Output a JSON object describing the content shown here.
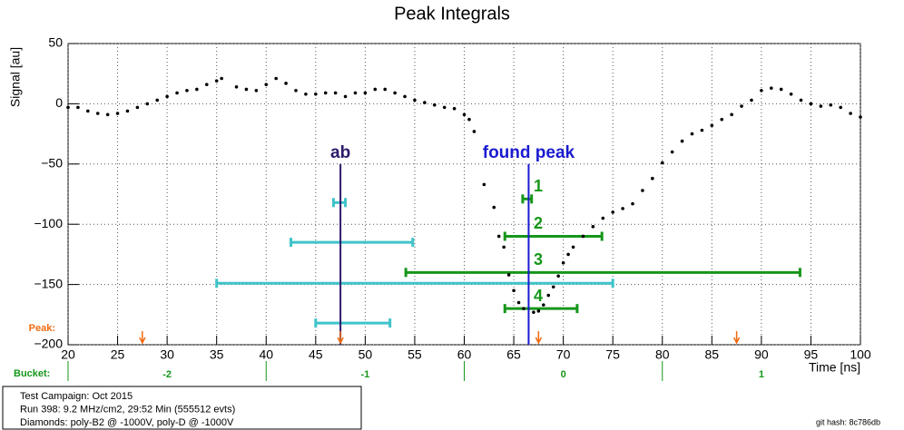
{
  "chart_data": {
    "type": "scatter",
    "title": "Peak Integrals",
    "x_label": "Time [ns]",
    "y_label": "Signal [au]",
    "xlim": [
      20,
      100
    ],
    "ylim": [
      -200,
      50
    ],
    "xticks": [
      20,
      25,
      30,
      35,
      40,
      45,
      50,
      55,
      60,
      65,
      70,
      75,
      80,
      85,
      90,
      95,
      100
    ],
    "yticks": [
      {
        "value": -200,
        "label": "−200"
      },
      {
        "value": -150,
        "label": "−150"
      },
      {
        "value": -100,
        "label": "−100"
      },
      {
        "value": -50,
        "label": "−50"
      },
      0,
      50
    ],
    "grid": true,
    "series": [
      {
        "color": "#000000",
        "x": [
          20,
          21,
          22,
          23,
          24,
          25,
          26,
          27,
          28,
          29,
          30,
          31,
          32,
          33,
          34,
          35,
          35.5,
          37,
          38,
          39,
          40,
          41,
          42,
          43,
          44,
          45,
          46,
          47,
          48,
          49,
          50,
          51,
          52,
          53,
          54,
          55,
          56,
          57,
          58,
          59,
          60,
          60.5,
          61,
          62,
          63,
          63.5,
          64,
          64.5,
          65,
          65.5,
          66,
          67,
          67.5,
          68,
          68.5,
          69,
          69.5,
          70,
          70.5,
          71,
          72,
          73,
          74,
          75,
          76,
          77,
          78,
          79,
          80,
          81,
          82,
          83,
          84,
          85,
          86,
          87,
          88,
          89,
          90,
          91,
          92,
          93,
          94,
          95,
          96,
          97,
          98,
          99,
          100
        ],
        "values": [
          -3,
          -3,
          -6,
          -8,
          -9,
          -8,
          -6,
          -3,
          0,
          3,
          6,
          9,
          11,
          12,
          16,
          19,
          21,
          14,
          12,
          11,
          16,
          21,
          17,
          11,
          8,
          8,
          9,
          9,
          6,
          9,
          9,
          12,
          12,
          9,
          6,
          3,
          1,
          -1,
          -3,
          -4,
          -9,
          -13,
          -23,
          -67,
          -86,
          -110,
          -119,
          -142,
          -155,
          -165,
          -170,
          -173,
          -172,
          -167,
          -159,
          -152,
          -143,
          -132,
          -125,
          -119,
          -110,
          -102,
          -95,
          -90,
          -87,
          -83,
          -72,
          -62,
          -49,
          -40,
          -31,
          -25,
          -22,
          -18,
          -13,
          -9,
          -2,
          3,
          11,
          13,
          12,
          8,
          3,
          0,
          -2,
          -1,
          -3,
          -8,
          -11
        ]
      }
    ],
    "ranges": [
      {
        "color": "#3fc3c9",
        "y": -82,
        "x": [
          46.8,
          48.0
        ]
      },
      {
        "color": "#3fc3c9",
        "y": -115,
        "x": [
          42.5,
          54.8
        ]
      },
      {
        "color": "#3fc3c9",
        "y": -149,
        "x": [
          35.0,
          75.0
        ]
      },
      {
        "color": "#3fc3c9",
        "y": -182,
        "x": [
          45.0,
          52.5
        ]
      },
      {
        "color": "#16961a",
        "y": -79,
        "x": [
          65.9,
          66.8
        ],
        "label": "1"
      },
      {
        "color": "#16961a",
        "y": -110,
        "x": [
          64.1,
          73.9
        ],
        "label": "2"
      },
      {
        "color": "#16961a",
        "y": -140,
        "x": [
          54.1,
          93.9
        ],
        "label": "3"
      },
      {
        "color": "#16961a",
        "y": -170,
        "x": [
          64.1,
          71.4
        ],
        "label": "4"
      }
    ],
    "markers": [
      {
        "label": "ab",
        "x": 47.5,
        "y": [
          -50,
          -200
        ],
        "color": "#2e1a6b"
      },
      {
        "label": "found peak",
        "x": 66.5,
        "y": [
          -50,
          -200
        ],
        "color": "#1a1ad0"
      }
    ],
    "peak_label": "Peak:",
    "peak_x": [
      27.5,
      47.5,
      67.5,
      87.5
    ],
    "peak_color": "#f06a10",
    "bucket_label": "Bucket:",
    "bucket_edges": [
      20,
      40,
      60,
      80
    ],
    "bucket_centers": [
      30,
      50,
      70,
      90
    ],
    "bucket_labels": [
      "-2",
      "-1",
      "0",
      "1"
    ],
    "bucket_color": "#16961a",
    "info": [
      "Test Campaign: Oct 2015",
      "Run 398: 9.2 MHz/cm2, 29:52 Min (555512 evts)",
      "Diamonds: poly-B2 @ -1000V, poly-D @ -1000V"
    ],
    "git_hash": "git hash: 8c786db"
  }
}
